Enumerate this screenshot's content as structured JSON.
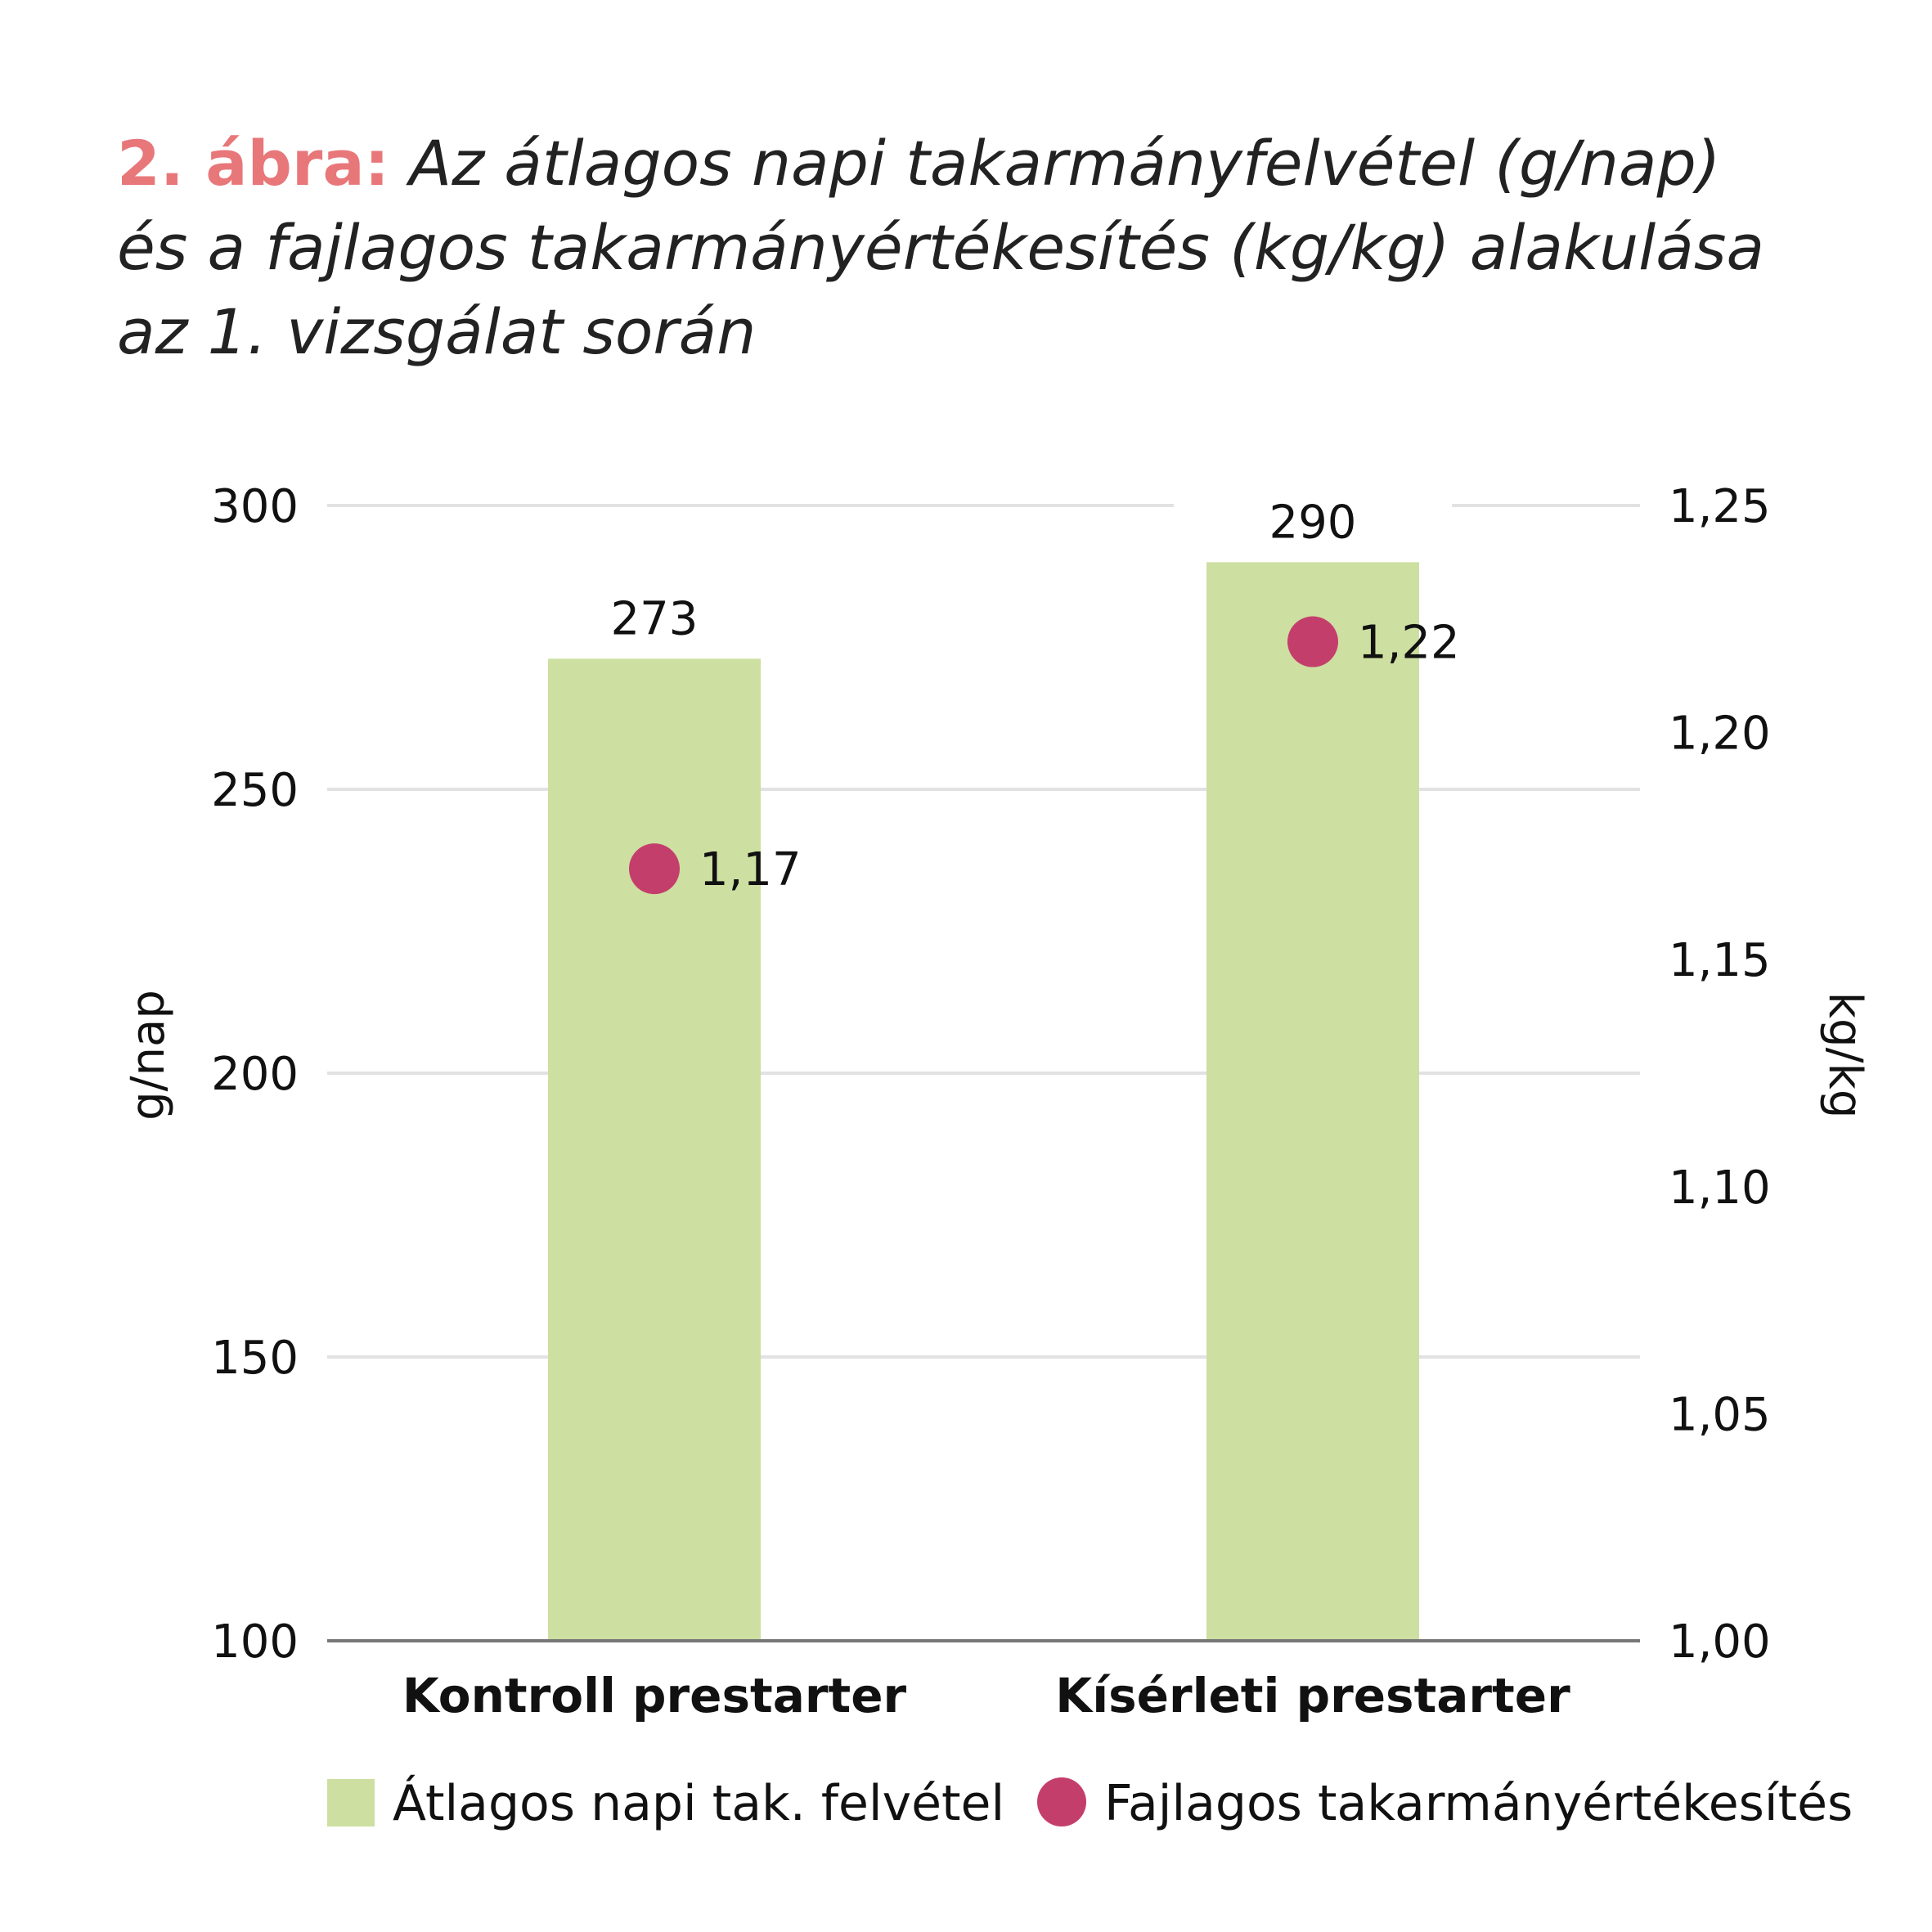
{
  "title": {
    "prefix": "2. ábra:",
    "line1": "Az átlagos napi takarmányfelvétel (g/nap)",
    "line2": "és a fajlagos takarmányértékesítés (kg/kg) alakulása",
    "line3": "az 1. vizsgálat során"
  },
  "colors": {
    "bar": "#cddfa1",
    "dot": "#c43e6c",
    "grid": "#e2e2e2",
    "baseline": "#777777",
    "title_accent": "#e8777a"
  },
  "chart_data": {
    "type": "bar",
    "categories": [
      "Kontroll prestarter",
      "Kísérleti prestarter"
    ],
    "series": [
      {
        "name": "Átlagos napi tak. felvétel",
        "type": "bar",
        "axis": "left",
        "values": [
          273,
          290
        ],
        "labels": [
          "273",
          "290"
        ]
      },
      {
        "name": "Fajlagos takarmányértékesítés",
        "type": "scatter",
        "axis": "right",
        "values": [
          1.17,
          1.22
        ],
        "labels": [
          "1,17",
          "1,22"
        ]
      }
    ],
    "ylabel": "g/nap",
    "y2label": "kg/kg",
    "ylim": [
      100,
      300
    ],
    "y2lim": [
      1.0,
      1.25
    ],
    "yticks": [
      100,
      150,
      200,
      250,
      300
    ],
    "yticklabels": [
      "100",
      "150",
      "200",
      "250",
      "300"
    ],
    "y2ticks": [
      1.0,
      1.05,
      1.1,
      1.15,
      1.2,
      1.25
    ],
    "y2ticklabels": [
      "1,00",
      "1,05",
      "1,10",
      "1,15",
      "1,20",
      "1,25"
    ],
    "grid": true,
    "legend_position": "bottom"
  }
}
